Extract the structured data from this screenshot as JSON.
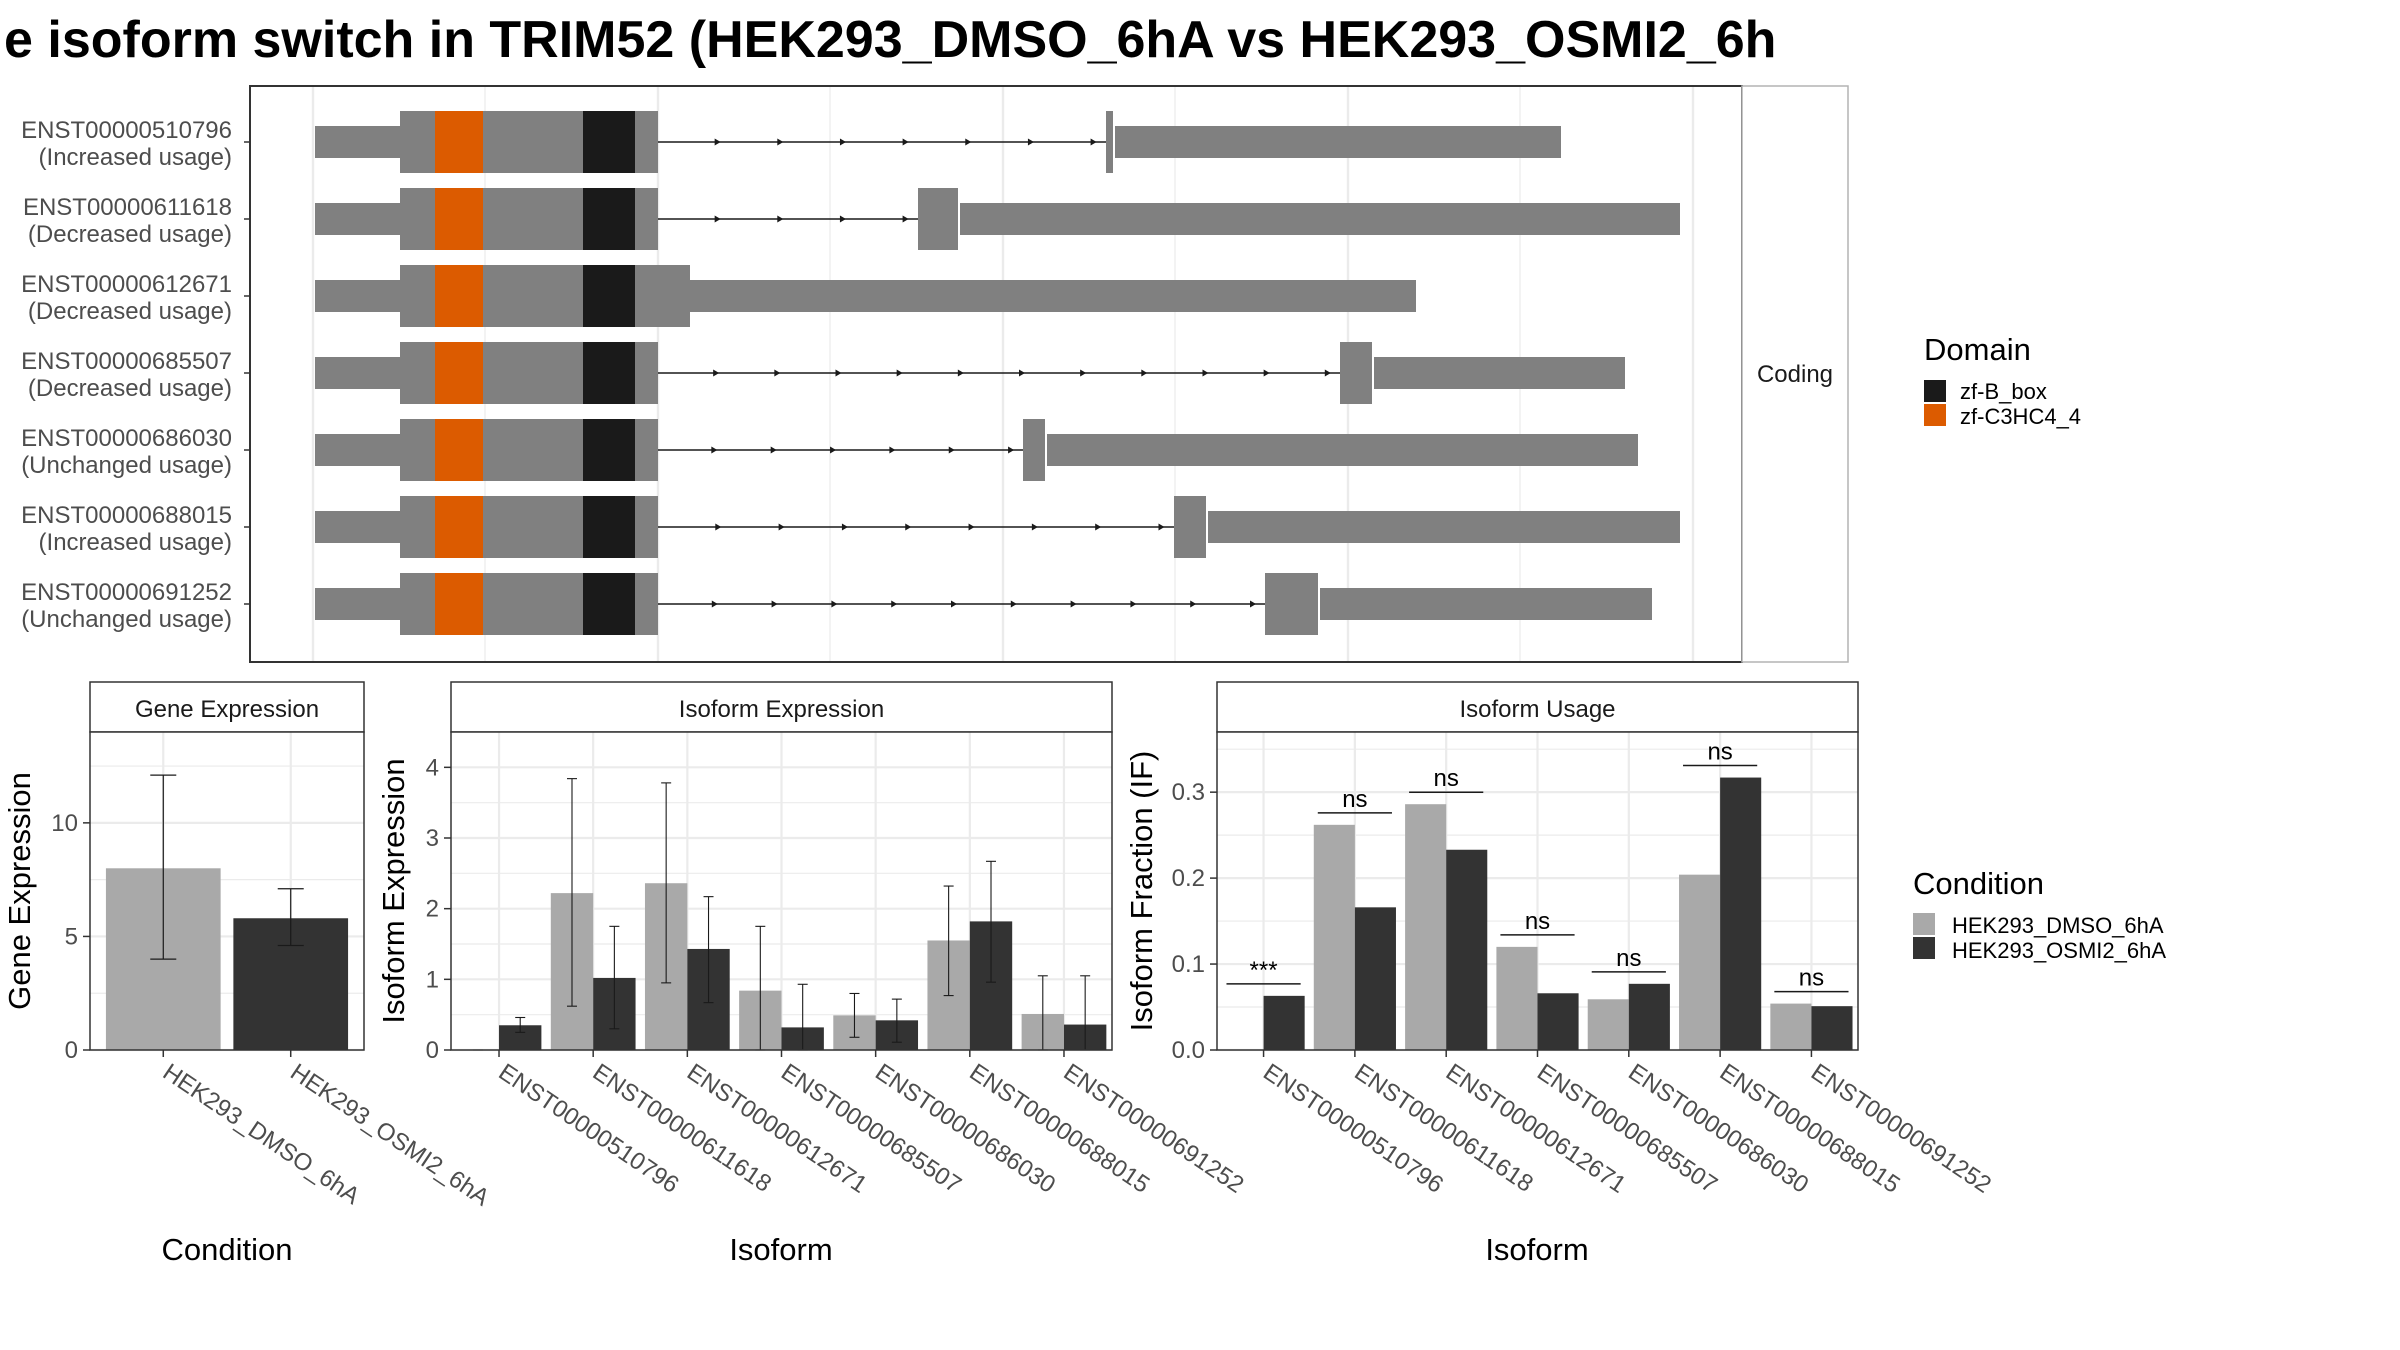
{
  "title": "e isoform switch in TRIM52 (HEK293_DMSO_6hA vs HEK293_OSMI2_6h",
  "colors": {
    "exon": "#808080",
    "zf_b_box": "#1a1a1a",
    "zf_c3hc4": "#dc5b00",
    "dmso": "#a9a9a9",
    "osmi2": "#333333",
    "grid": "#ebebeb",
    "panel_border": "#333333",
    "strip_fill": "#ffffff"
  },
  "structure_panel": {
    "strip_label": "Coding",
    "transcripts": [
      {
        "id": "ENST00000510796",
        "status": "(Increased usage)"
      },
      {
        "id": "ENST00000611618",
        "status": "(Decreased usage)"
      },
      {
        "id": "ENST00000612671",
        "status": "(Decreased usage)"
      },
      {
        "id": "ENST00000685507",
        "status": "(Decreased usage)"
      },
      {
        "id": "ENST00000686030",
        "status": "(Unchanged usage)"
      },
      {
        "id": "ENST00000688015",
        "status": "(Increased usage)"
      },
      {
        "id": "ENST00000691252",
        "status": "(Unchanged usage)"
      }
    ]
  },
  "domain_legend": {
    "title": "Domain",
    "items": [
      {
        "label": "zf-B_box",
        "color": "#1a1a1a"
      },
      {
        "label": "zf-C3HC4_4",
        "color": "#dc5b00"
      }
    ]
  },
  "condition_legend": {
    "title": "Condition",
    "items": [
      {
        "label": "HEK293_DMSO_6hA",
        "color": "#a9a9a9"
      },
      {
        "label": "HEK293_OSMI2_6hA",
        "color": "#333333"
      }
    ]
  },
  "chart_data": [
    {
      "type": "bar",
      "title": "Gene Expression",
      "xlabel": "Condition",
      "ylabel": "Gene Expression",
      "ylim": [
        0,
        14
      ],
      "yticks": [
        0,
        5,
        10
      ],
      "categories": [
        "HEK293_DMSO_6hA",
        "HEK293_OSMI2_6hA"
      ],
      "values": [
        8.0,
        5.8
      ],
      "err_low": [
        4.0,
        4.6
      ],
      "err_high": [
        12.1,
        7.1
      ]
    },
    {
      "type": "bar",
      "title": "Isoform Expression",
      "xlabel": "Isoform",
      "ylabel": "Isoform Expression",
      "ylim": [
        0,
        4.5
      ],
      "yticks": [
        0,
        1,
        2,
        3,
        4
      ],
      "categories": [
        "ENST00000510796",
        "ENST00000611618",
        "ENST00000612671",
        "ENST00000685507",
        "ENST00000686030",
        "ENST00000688015",
        "ENST00000691252"
      ],
      "series": [
        {
          "name": "HEK293_DMSO_6hA",
          "values": [
            0.0,
            2.22,
            2.36,
            0.84,
            0.49,
            1.55,
            0.51
          ],
          "err_low": [
            0.0,
            0.62,
            0.95,
            0.0,
            0.18,
            0.77,
            0.0
          ],
          "err_high": [
            0.0,
            3.84,
            3.78,
            1.75,
            0.8,
            2.32,
            1.05
          ]
        },
        {
          "name": "HEK293_OSMI2_6hA",
          "values": [
            0.35,
            1.02,
            1.43,
            0.32,
            0.42,
            1.82,
            0.36
          ],
          "err_low": [
            0.25,
            0.3,
            0.67,
            0.0,
            0.11,
            0.96,
            0.0
          ],
          "err_high": [
            0.46,
            1.75,
            2.17,
            0.93,
            0.72,
            2.67,
            1.05
          ]
        }
      ]
    },
    {
      "type": "bar",
      "title": "Isoform Usage",
      "xlabel": "Isoform",
      "ylabel": "Isoform Fraction (IF)",
      "ylim": [
        0,
        0.37
      ],
      "yticks": [
        0.0,
        0.1,
        0.2,
        0.3
      ],
      "ytick_labels": [
        "0.0",
        "0.1",
        "0.2",
        "0.3"
      ],
      "categories": [
        "ENST00000510796",
        "ENST00000611618",
        "ENST00000612671",
        "ENST00000685507",
        "ENST00000686030",
        "ENST00000688015",
        "ENST00000691252"
      ],
      "series": [
        {
          "name": "HEK293_DMSO_6hA",
          "values": [
            0.0,
            0.262,
            0.286,
            0.12,
            0.059,
            0.204,
            0.054
          ]
        },
        {
          "name": "HEK293_OSMI2_6hA",
          "values": [
            0.063,
            0.166,
            0.233,
            0.066,
            0.077,
            0.317,
            0.051
          ]
        }
      ],
      "significance": [
        "***",
        "ns",
        "ns",
        "ns",
        "ns",
        "ns",
        "ns"
      ]
    }
  ]
}
